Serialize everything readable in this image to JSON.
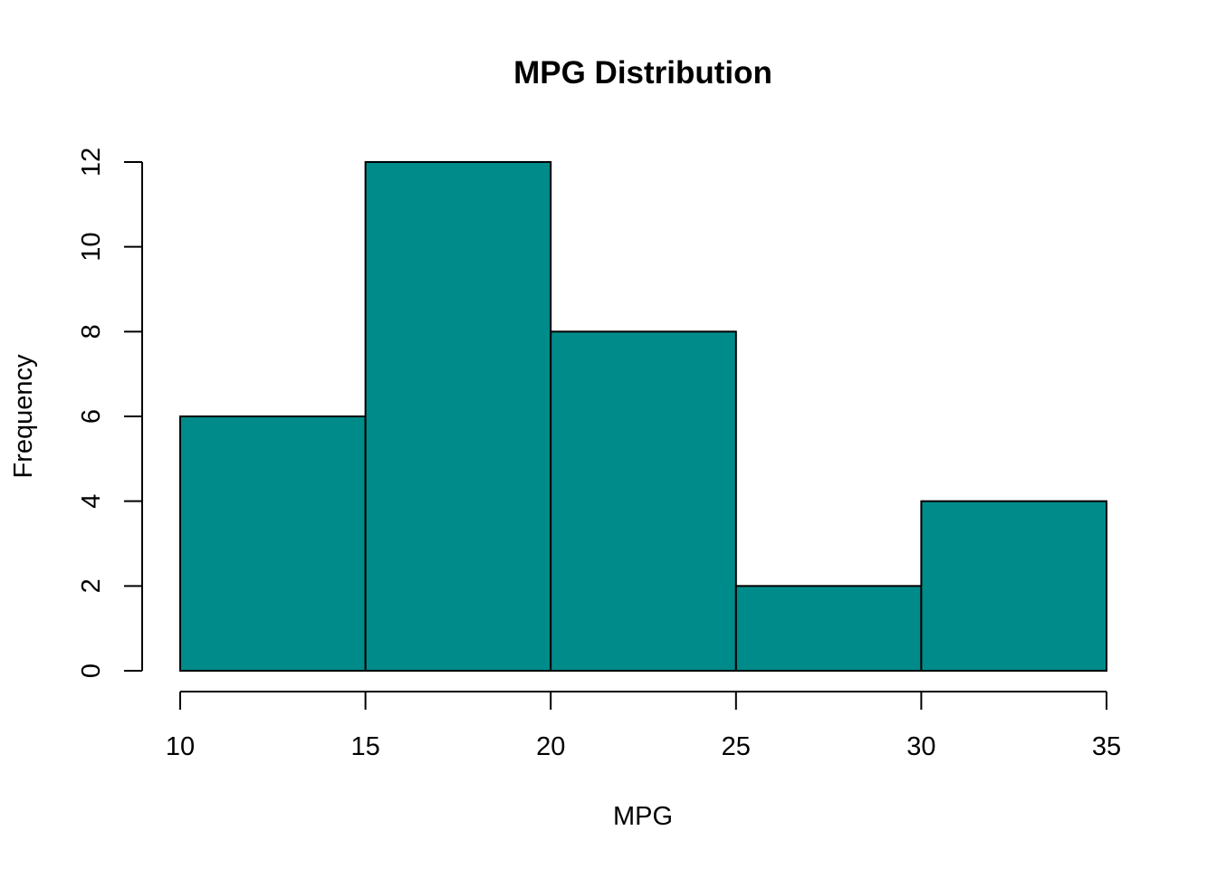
{
  "chart_data": {
    "type": "bar",
    "subtype": "histogram",
    "title": "MPG Distribution",
    "xlabel": "MPG",
    "ylabel": "Frequency",
    "bins": [
      {
        "start": 10,
        "end": 15,
        "count": 6
      },
      {
        "start": 15,
        "end": 20,
        "count": 12
      },
      {
        "start": 20,
        "end": 25,
        "count": 8
      },
      {
        "start": 25,
        "end": 30,
        "count": 2
      },
      {
        "start": 30,
        "end": 35,
        "count": 4
      }
    ],
    "xlim": [
      10,
      35
    ],
    "ylim": [
      0,
      12
    ],
    "x_ticks": [
      10,
      15,
      20,
      25,
      30,
      35
    ],
    "y_ticks": [
      0,
      2,
      4,
      6,
      8,
      10,
      12
    ],
    "bar_color": "#008B8B",
    "bar_edge_color": "#000000",
    "grid": false,
    "legend": "none"
  }
}
